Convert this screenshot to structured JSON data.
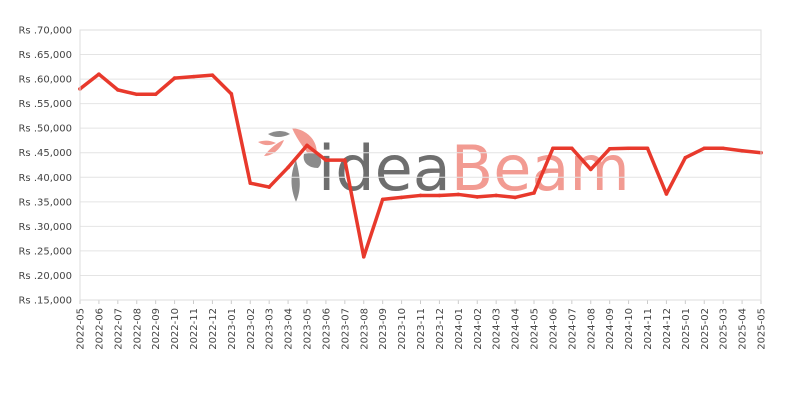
{
  "chart_data": {
    "type": "line",
    "title": "",
    "xlabel": "",
    "ylabel": "",
    "x": [
      "2022-05",
      "2022-06",
      "2022-07",
      "2022-08",
      "2022-09",
      "2022-10",
      "2022-11",
      "2022-12",
      "2023-01",
      "2023-02",
      "2023-03",
      "2023-04",
      "2023-05",
      "2023-06",
      "2023-07",
      "2023-08",
      "2023-09",
      "2023-10",
      "2023-11",
      "2023-12",
      "2024-01",
      "2024-02",
      "2024-03",
      "2024-04",
      "2024-05",
      "2024-06",
      "2024-07",
      "2024-08",
      "2024-09",
      "2024-10",
      "2024-11",
      "2024-12",
      "2025-01",
      "2025-02",
      "2025-03",
      "2025-04",
      "2025-05"
    ],
    "series": [
      {
        "values": [
          58000,
          61000,
          57800,
          56900,
          56900,
          60200,
          60500,
          60800,
          57000,
          38800,
          38000,
          42000,
          46500,
          43500,
          43500,
          23800,
          35500,
          35900,
          36300,
          36300,
          36500,
          36000,
          36300,
          35900,
          36800,
          45900,
          45900,
          41600,
          45800,
          45900,
          45900,
          36600,
          44000,
          45900,
          45900,
          45400,
          45000
        ],
        "color": "#e8392c"
      }
    ],
    "ylim": [
      15000,
      70000
    ],
    "yticks": [
      15000,
      20000,
      25000,
      30000,
      35000,
      40000,
      45000,
      50000,
      55000,
      60000,
      65000,
      70000
    ],
    "ytick_labels": [
      "Rs .15,000",
      "Rs .20,000",
      "Rs .25,000",
      "Rs .30,000",
      "Rs .35,000",
      "Rs .40,000",
      "Rs .45,000",
      "Rs .50,000",
      "Rs .55,000",
      "Rs .60,000",
      "Rs .65,000",
      "Rs .70,000"
    ],
    "grid": true,
    "legend": "none"
  },
  "watermark": {
    "part1": "idea",
    "part2": "Beam",
    "color1": "#555555",
    "color2": "#f08a80"
  }
}
